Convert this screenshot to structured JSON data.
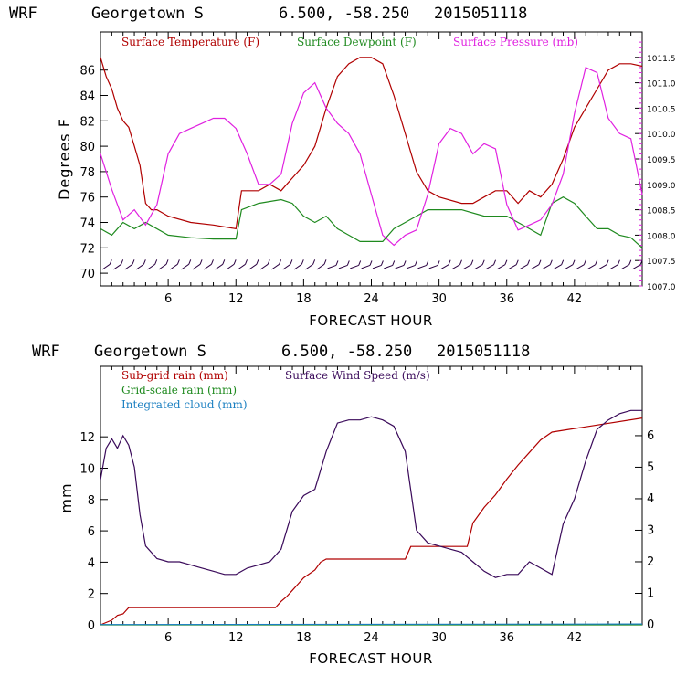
{
  "chart_data": [
    {
      "type": "line",
      "header": {
        "model": "WRF",
        "location": "Georgetown S",
        "coords": "6.500, -58.250",
        "init": "2015051118"
      },
      "xlabel": "FORECAST HOUR",
      "ylabel": "Degrees F",
      "xlim": [
        0,
        48
      ],
      "ylim": [
        69,
        89
      ],
      "y2lim": [
        1007.0,
        1012.0
      ],
      "xticks": [
        6,
        12,
        18,
        24,
        30,
        36,
        42
      ],
      "yticks": [
        70,
        72,
        74,
        76,
        78,
        80,
        82,
        84,
        86
      ],
      "y2ticks": [
        "1007.0",
        "1007.5",
        "1008.0",
        "1008.5",
        "1009.0",
        "1009.5",
        "1010.0",
        "1010.5",
        "1011.0",
        "1011.5"
      ],
      "series": [
        {
          "name": "Surface Temperature (F)",
          "color": "#b00000",
          "axis": "left",
          "x": [
            0,
            0.5,
            1,
            1.5,
            2,
            2.5,
            3,
            3.5,
            4,
            4.5,
            5,
            6,
            8,
            10,
            12,
            12.5,
            14,
            15,
            16,
            16.5,
            17,
            18,
            19,
            20,
            21,
            22,
            23,
            24,
            25,
            26,
            27,
            28,
            29,
            30,
            32,
            33,
            34,
            35,
            36,
            37,
            38,
            39,
            40,
            41,
            42,
            43,
            44,
            45,
            46,
            47,
            48
          ],
          "y": [
            87,
            85.5,
            84.5,
            83,
            82,
            81.5,
            80,
            78.5,
            75.5,
            75,
            75,
            74.5,
            74,
            73.8,
            73.5,
            76.5,
            76.5,
            77,
            76.5,
            77,
            77.5,
            78.5,
            80,
            83,
            85.5,
            86.5,
            87,
            87,
            86.5,
            84,
            81,
            78,
            76.5,
            76,
            75.5,
            75.5,
            76,
            76.5,
            76.5,
            75.5,
            76.5,
            76,
            77,
            79,
            81.5,
            83,
            84.5,
            86,
            86.5,
            86.5,
            86.3
          ]
        },
        {
          "name": "Surface Dewpoint (F)",
          "color": "#1f8a1f",
          "axis": "left",
          "x": [
            0,
            1,
            2,
            3,
            4,
            6,
            8,
            10,
            12,
            12.5,
            14,
            16,
            17,
            18,
            19,
            20,
            21,
            22,
            23,
            24,
            25,
            26,
            27,
            28,
            29,
            30,
            32,
            34,
            36,
            37,
            38,
            39,
            40,
            41,
            42,
            43,
            44,
            45,
            46,
            47,
            48
          ],
          "y": [
            73.5,
            73,
            74,
            73.5,
            74,
            73,
            72.8,
            72.7,
            72.7,
            75,
            75.5,
            75.8,
            75.5,
            74.5,
            74,
            74.5,
            73.5,
            73,
            72.5,
            72.5,
            72.5,
            73.5,
            74,
            74.5,
            75,
            75,
            75,
            74.5,
            74.5,
            74,
            73.5,
            73,
            75.5,
            76,
            75.5,
            74.5,
            73.5,
            73.5,
            73,
            72.8,
            72
          ]
        },
        {
          "name": "Surface Pressure (mb)",
          "color": "#e020e0",
          "axis": "right",
          "x": [
            0,
            1,
            2,
            3,
            4,
            5,
            6,
            7,
            8,
            9,
            10,
            11,
            12,
            13,
            14,
            15,
            16,
            17,
            18,
            19,
            20,
            21,
            22,
            23,
            24,
            25,
            26,
            27,
            28,
            29,
            30,
            31,
            32,
            33,
            34,
            35,
            36,
            37,
            38,
            39,
            40,
            41,
            42,
            43,
            44,
            45,
            46,
            47,
            48
          ],
          "y": [
            1009.6,
            1008.9,
            1008.3,
            1008.5,
            1008.2,
            1008.6,
            1009.6,
            1010.0,
            1010.1,
            1010.2,
            1010.3,
            1010.3,
            1010.1,
            1009.6,
            1009.0,
            1009.0,
            1009.2,
            1010.2,
            1010.8,
            1011.0,
            1010.5,
            1010.2,
            1010.0,
            1009.6,
            1008.8,
            1008.0,
            1007.8,
            1008.0,
            1008.1,
            1008.8,
            1009.8,
            1010.1,
            1010.0,
            1009.6,
            1009.8,
            1009.7,
            1008.6,
            1008.1,
            1008.2,
            1008.3,
            1008.6,
            1009.2,
            1010.4,
            1011.3,
            1011.2,
            1010.3,
            1010.0,
            1009.9,
            1008.8
          ]
        }
      ],
      "wind_barbs_row": {
        "y": 70.5,
        "count": 48
      }
    },
    {
      "type": "line",
      "header": {
        "model": "WRF",
        "location": "Georgetown S",
        "coords": "6.500, -58.250",
        "init": "2015051118"
      },
      "xlabel": "FORECAST HOUR",
      "ylabel": "mm",
      "xlim": [
        0,
        48
      ],
      "ylim": [
        0,
        16.5
      ],
      "y2lim": [
        0,
        8.2
      ],
      "xticks": [
        6,
        12,
        18,
        24,
        30,
        36,
        42
      ],
      "yticks": [
        0,
        2,
        4,
        6,
        8,
        10,
        12
      ],
      "y2ticks": [
        0,
        1,
        2,
        3,
        4,
        5,
        6
      ],
      "series": [
        {
          "name": "Sub-grid rain (mm)",
          "color": "#b00000",
          "axis": "left",
          "x": [
            0,
            1,
            1.5,
            2,
            2.5,
            15.5,
            16,
            16.5,
            17,
            17.5,
            18,
            19,
            19.5,
            20,
            27,
            27.5,
            32.5,
            33,
            34,
            35,
            36,
            37,
            38,
            39,
            40,
            48
          ],
          "y": [
            0,
            0.3,
            0.6,
            0.7,
            1.1,
            1.1,
            1.5,
            1.8,
            2.2,
            2.6,
            3.0,
            3.5,
            4.0,
            4.2,
            4.2,
            5.0,
            5.0,
            6.5,
            7.5,
            8.3,
            9.3,
            10.2,
            11.0,
            11.8,
            12.3,
            13.2
          ]
        },
        {
          "name": "Grid-scale rain (mm)",
          "color": "#1f8a1f",
          "axis": "left",
          "x": [
            0,
            48
          ],
          "y": [
            0,
            0
          ]
        },
        {
          "name": "Integrated cloud (mm)",
          "color": "#1a7fc1",
          "axis": "left",
          "x": [
            0,
            48
          ],
          "y": [
            0.02,
            0.05
          ]
        },
        {
          "name": "Surface Wind Speed (m/s)",
          "color": "#3a0a5a",
          "axis": "right",
          "x": [
            0,
            0.5,
            1,
            1.5,
            2,
            2.5,
            3,
            3.5,
            4,
            5,
            6,
            7,
            8,
            9,
            10,
            11,
            12,
            13,
            14,
            15,
            16,
            17,
            18,
            19,
            20,
            21,
            22,
            23,
            24,
            25,
            26,
            27,
            28,
            29,
            30,
            31,
            32,
            33,
            34,
            35,
            36,
            37,
            38,
            39,
            40,
            41,
            42,
            43,
            44,
            45,
            46,
            47,
            48
          ],
          "y": [
            4.6,
            5.6,
            5.9,
            5.6,
            6.0,
            5.7,
            5.0,
            3.5,
            2.5,
            2.1,
            2.0,
            2.0,
            1.9,
            1.8,
            1.7,
            1.6,
            1.6,
            1.8,
            1.9,
            2.0,
            2.4,
            3.6,
            4.1,
            4.3,
            5.5,
            6.4,
            6.5,
            6.5,
            6.6,
            6.5,
            6.3,
            5.5,
            3.0,
            2.6,
            2.5,
            2.4,
            2.3,
            2.0,
            1.7,
            1.5,
            1.6,
            1.6,
            2.0,
            1.8,
            1.6,
            3.2,
            4.0,
            5.2,
            6.2,
            6.5,
            6.7,
            6.8,
            6.8
          ]
        }
      ]
    }
  ]
}
